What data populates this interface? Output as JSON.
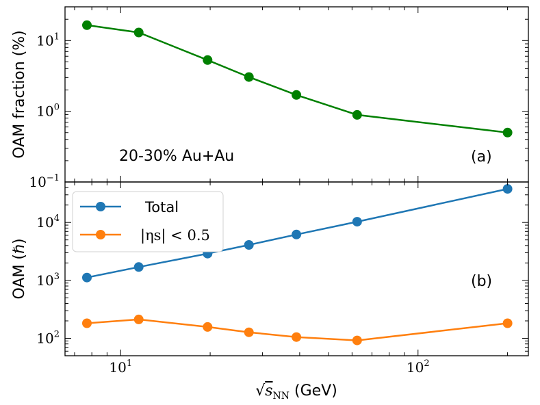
{
  "chart_data": [
    {
      "panel": "a",
      "type": "line",
      "xscale": "log",
      "yscale": "log",
      "xlim": [
        6.5,
        235
      ],
      "ylim": [
        0.1,
        30
      ],
      "ylabel": "OAM fraction (%)",
      "yticks": [
        {
          "value": 0.1,
          "base": "10",
          "exp": "−1"
        },
        {
          "value": 1,
          "base": "10",
          "exp": "0"
        },
        {
          "value": 10,
          "base": "10",
          "exp": "1"
        }
      ],
      "annotation": "20-30% Au+Au",
      "panel_label": "(a)",
      "series": [
        {
          "color": "#008000",
          "x": [
            7.7,
            11.5,
            19.6,
            27,
            39,
            62.4,
            200
          ],
          "y": [
            16.5,
            13.0,
            5.3,
            3.05,
            1.7,
            0.89,
            0.5
          ]
        }
      ]
    },
    {
      "panel": "b",
      "type": "line",
      "xscale": "log",
      "yscale": "log",
      "xlim": [
        6.5,
        235
      ],
      "ylim": [
        50,
        50000
      ],
      "ylabel": "OAM (ℏ)",
      "xlabel_prefix": "√",
      "xlabel_var": "s",
      "xlabel_sub": "NN",
      "xlabel_unit": " (GeV)",
      "xticks": [
        {
          "value": 10,
          "base": "10",
          "exp": "1"
        },
        {
          "value": 100,
          "base": "10",
          "exp": "2"
        }
      ],
      "yticks": [
        {
          "value": 100,
          "base": "10",
          "exp": "2"
        },
        {
          "value": 1000,
          "base": "10",
          "exp": "3"
        },
        {
          "value": 10000,
          "base": "10",
          "exp": "4"
        }
      ],
      "legend_position": "top-left",
      "panel_label": "(b)",
      "series": [
        {
          "name": "Total",
          "color": "#1f77b4",
          "x": [
            7.7,
            11.5,
            19.6,
            27,
            39,
            62.4,
            200
          ],
          "y": [
            1120,
            1700,
            2900,
            4100,
            6200,
            10300,
            38000
          ]
        },
        {
          "name": "|ηs| < 0.5",
          "color": "#ff7f0e",
          "x": [
            7.7,
            11.5,
            19.6,
            27,
            39,
            62.4,
            200
          ],
          "y": [
            182,
            212,
            157,
            127,
            105,
            92,
            182
          ]
        }
      ]
    }
  ]
}
